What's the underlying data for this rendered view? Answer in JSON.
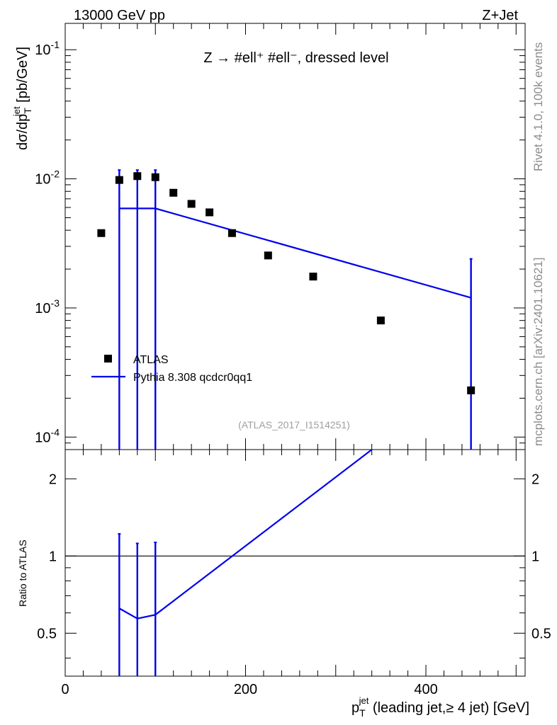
{
  "header": {
    "energy": "13000 GeV pp",
    "process": "Z+Jet"
  },
  "side_labels": {
    "rivet": "Rivet 4.1.0,  100k events",
    "mcplots": "mcplots.cern.ch [arXiv:2401.10621]"
  },
  "chart_data": [
    {
      "type": "scatter",
      "panel": "main",
      "title": "Z → #ell⁺ #ell⁻, dressed level",
      "watermark": "(ATLAS_2017_I1514251)",
      "ylabel": "dσ/dp_T^jet [pb/GeV]",
      "yscale": "log",
      "ylim": [
        8e-05,
        0.16
      ],
      "xlim": [
        0,
        510
      ],
      "y_ticks": [
        {
          "value": 0.1,
          "label": "10⁻¹"
        },
        {
          "value": 0.01,
          "label": "10⁻²"
        },
        {
          "value": 0.001,
          "label": "10⁻³"
        },
        {
          "value": 0.0001,
          "label": "10⁻⁴"
        }
      ],
      "legend": {
        "placement": "lower-left",
        "entries": [
          "ATLAS",
          "Pythia 8.308 qcdcr0qq1"
        ]
      },
      "series": [
        {
          "name": "ATLAS",
          "style": "markers",
          "color": "#000000",
          "x": [
            40,
            60,
            80,
            100,
            120,
            140,
            160,
            185,
            225,
            275,
            350,
            450
          ],
          "y": [
            0.0038,
            0.0098,
            0.0105,
            0.0103,
            0.0078,
            0.0064,
            0.0055,
            0.0038,
            0.00255,
            0.00175,
            0.0008,
            0.00023
          ]
        },
        {
          "name": "Pythia 8.308 qcdcr0qq1",
          "style": "line",
          "color": "#0000ee",
          "x": [
            60,
            80,
            100,
            450
          ],
          "y": [
            0.0059,
            0.0059,
            0.0059,
            0.0012
          ],
          "yerr_low": [
            8e-05,
            8e-05,
            8e-05,
            8e-05
          ],
          "yerr_high": [
            0.0117,
            0.0117,
            0.0117,
            0.0024
          ]
        }
      ]
    },
    {
      "type": "line",
      "panel": "ratio",
      "ylabel": "Ratio to ATLAS",
      "xlabel": "p_T^jet (leading jet,≥ 4 jet) [GeV]",
      "yscale": "log",
      "ylim": [
        0.34,
        2.6
      ],
      "xlim": [
        0,
        510
      ],
      "x_ticks": [
        0,
        200,
        400
      ],
      "y_ticks": [
        0.5,
        1,
        2
      ],
      "reference": 1,
      "series": [
        {
          "name": "Pythia 8.308 qcdcr0qq1",
          "color": "#0000ee",
          "x": [
            60,
            80,
            100,
            340
          ],
          "y": [
            0.625,
            0.57,
            0.59,
            2.6
          ],
          "err_x": [
            60,
            80,
            100
          ],
          "err_y_high": [
            1.22,
            1.12,
            1.13
          ],
          "err_y_low": [
            0.34,
            0.34,
            0.34
          ]
        }
      ]
    }
  ]
}
